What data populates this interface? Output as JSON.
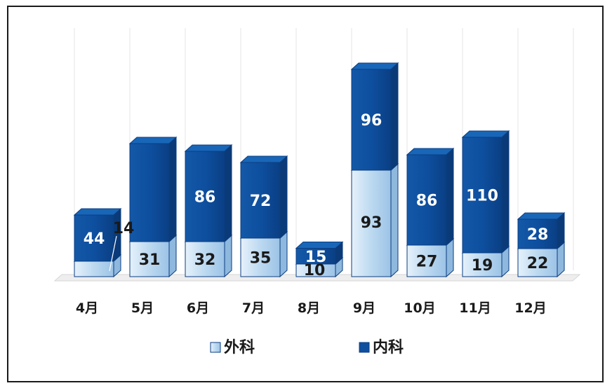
{
  "chart_data": {
    "type": "bar",
    "stacked": true,
    "categories": [
      "4月",
      "5月",
      "6月",
      "7月",
      "8月",
      "9月",
      "10月",
      "11月",
      "12月"
    ],
    "series": [
      {
        "name": "外科",
        "values": [
          14,
          31,
          32,
          35,
          10,
          93,
          27,
          19,
          22
        ],
        "color": "#bcd9f0"
      },
      {
        "name": "内科",
        "values": [
          44,
          null,
          86,
          72,
          15,
          96,
          86,
          110,
          28
        ],
        "color": "#0e4f9f"
      }
    ],
    "legend_position": "bottom",
    "grid": true
  }
}
